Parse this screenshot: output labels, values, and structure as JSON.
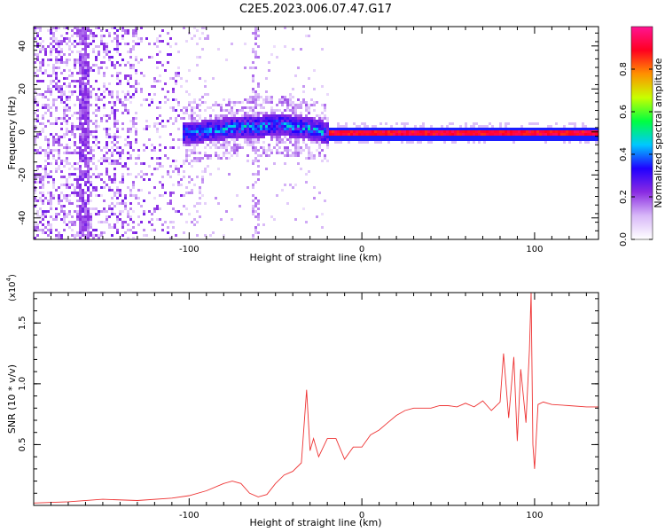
{
  "title": "C2E5.2023.006.07.47.G17",
  "chart_data": [
    {
      "type": "heatmap",
      "xlabel": "Height of straight line (km)",
      "ylabel": "Frequency (Hz)",
      "xlim": [
        -190,
        137
      ],
      "ylim": [
        -50,
        49
      ],
      "x_ticks": [
        -100,
        0,
        100
      ],
      "x_tick_labels": [
        "-100",
        "0",
        "100"
      ],
      "y_ticks": [
        -40,
        -20,
        0,
        20,
        40
      ],
      "y_tick_labels": [
        "-40",
        "-20",
        "0",
        "20",
        "40"
      ],
      "grid": false,
      "ridge": {
        "x": [
          -110,
          -100,
          -90,
          -80,
          -70,
          -60,
          -50,
          -40,
          -30,
          -20,
          0,
          50,
          100,
          137
        ],
        "y": [
          0,
          0,
          1,
          2,
          3,
          3,
          4,
          3,
          2,
          0,
          0,
          0,
          0,
          0
        ]
      },
      "colorbar": {
        "label": "Normalized spectral amplitude",
        "range": [
          0,
          1
        ],
        "ticks": [
          0.0,
          0.2,
          0.4,
          0.6,
          0.8
        ],
        "tick_labels": [
          "0.0",
          "0.2",
          "0.4",
          "0.6",
          "0.8"
        ],
        "colors": [
          "#ffffff",
          "#d8b8f8",
          "#8a2be2",
          "#2000ff",
          "#00c8ff",
          "#00ff40",
          "#c8ff00",
          "#ff9000",
          "#ff0020",
          "#ff1493"
        ]
      }
    },
    {
      "type": "line",
      "xlabel": "Height of straight line (km)",
      "ylabel": "SNR (10 * v/v)",
      "y_multiplier": "(x10",
      "y_multiplier_exp": "4",
      "y_multiplier_close": ")",
      "xlim": [
        -190,
        137
      ],
      "ylim": [
        0,
        17500
      ],
      "x_ticks": [
        -100,
        0,
        100
      ],
      "x_tick_labels": [
        "-100",
        "0",
        "100"
      ],
      "y_ticks": [
        5000,
        10000,
        15000
      ],
      "y_tick_labels": [
        "0.5",
        "1.0",
        "1.5"
      ],
      "grid": false,
      "series": [
        {
          "color": "#ee3333",
          "x": [
            -190,
            -170,
            -150,
            -130,
            -110,
            -100,
            -90,
            -80,
            -75,
            -70,
            -65,
            -60,
            -55,
            -50,
            -45,
            -40,
            -35,
            -32,
            -30,
            -28,
            -25,
            -20,
            -15,
            -10,
            -5,
            0,
            5,
            10,
            15,
            20,
            25,
            30,
            35,
            40,
            45,
            50,
            55,
            60,
            65,
            70,
            75,
            80,
            82,
            85,
            88,
            90,
            92,
            95,
            97,
            98,
            99,
            100,
            102,
            105,
            110,
            120,
            130,
            137
          ],
          "y": [
            200,
            300,
            500,
            400,
            600,
            800,
            1200,
            1800,
            2000,
            1800,
            1000,
            700,
            900,
            1800,
            2500,
            2800,
            3500,
            9500,
            4500,
            5500,
            4000,
            5500,
            5500,
            3800,
            4800,
            4800,
            5800,
            6200,
            6800,
            7400,
            7800,
            8000,
            8000,
            8000,
            8200,
            8200,
            8100,
            8400,
            8100,
            8600,
            7800,
            8500,
            12500,
            7200,
            12200,
            5300,
            11200,
            6800,
            12800,
            17500,
            5000,
            3000,
            8300,
            8500,
            8300,
            8200,
            8100,
            8100
          ]
        }
      ]
    }
  ]
}
